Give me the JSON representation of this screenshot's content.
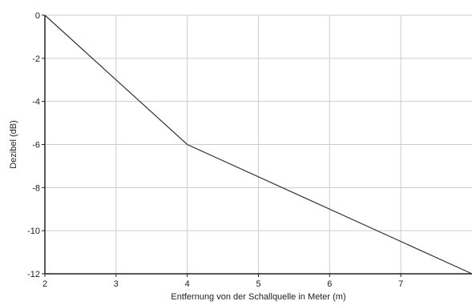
{
  "chart_data": {
    "type": "line",
    "xlabel": "Entfernung von der Schallquelle in Meter (m)",
    "ylabel": "Dezibel (dB)",
    "xlim": [
      2,
      8
    ],
    "ylim": [
      -12,
      0
    ],
    "x_ticks": [
      2,
      3,
      4,
      5,
      6,
      7
    ],
    "y_ticks": [
      0,
      -2,
      -4,
      -6,
      -8,
      -10,
      -12
    ],
    "grid": true,
    "series": [
      {
        "x": [
          2,
          4,
          8
        ],
        "y": [
          0,
          -6,
          -12
        ],
        "color": "#333333"
      }
    ]
  }
}
